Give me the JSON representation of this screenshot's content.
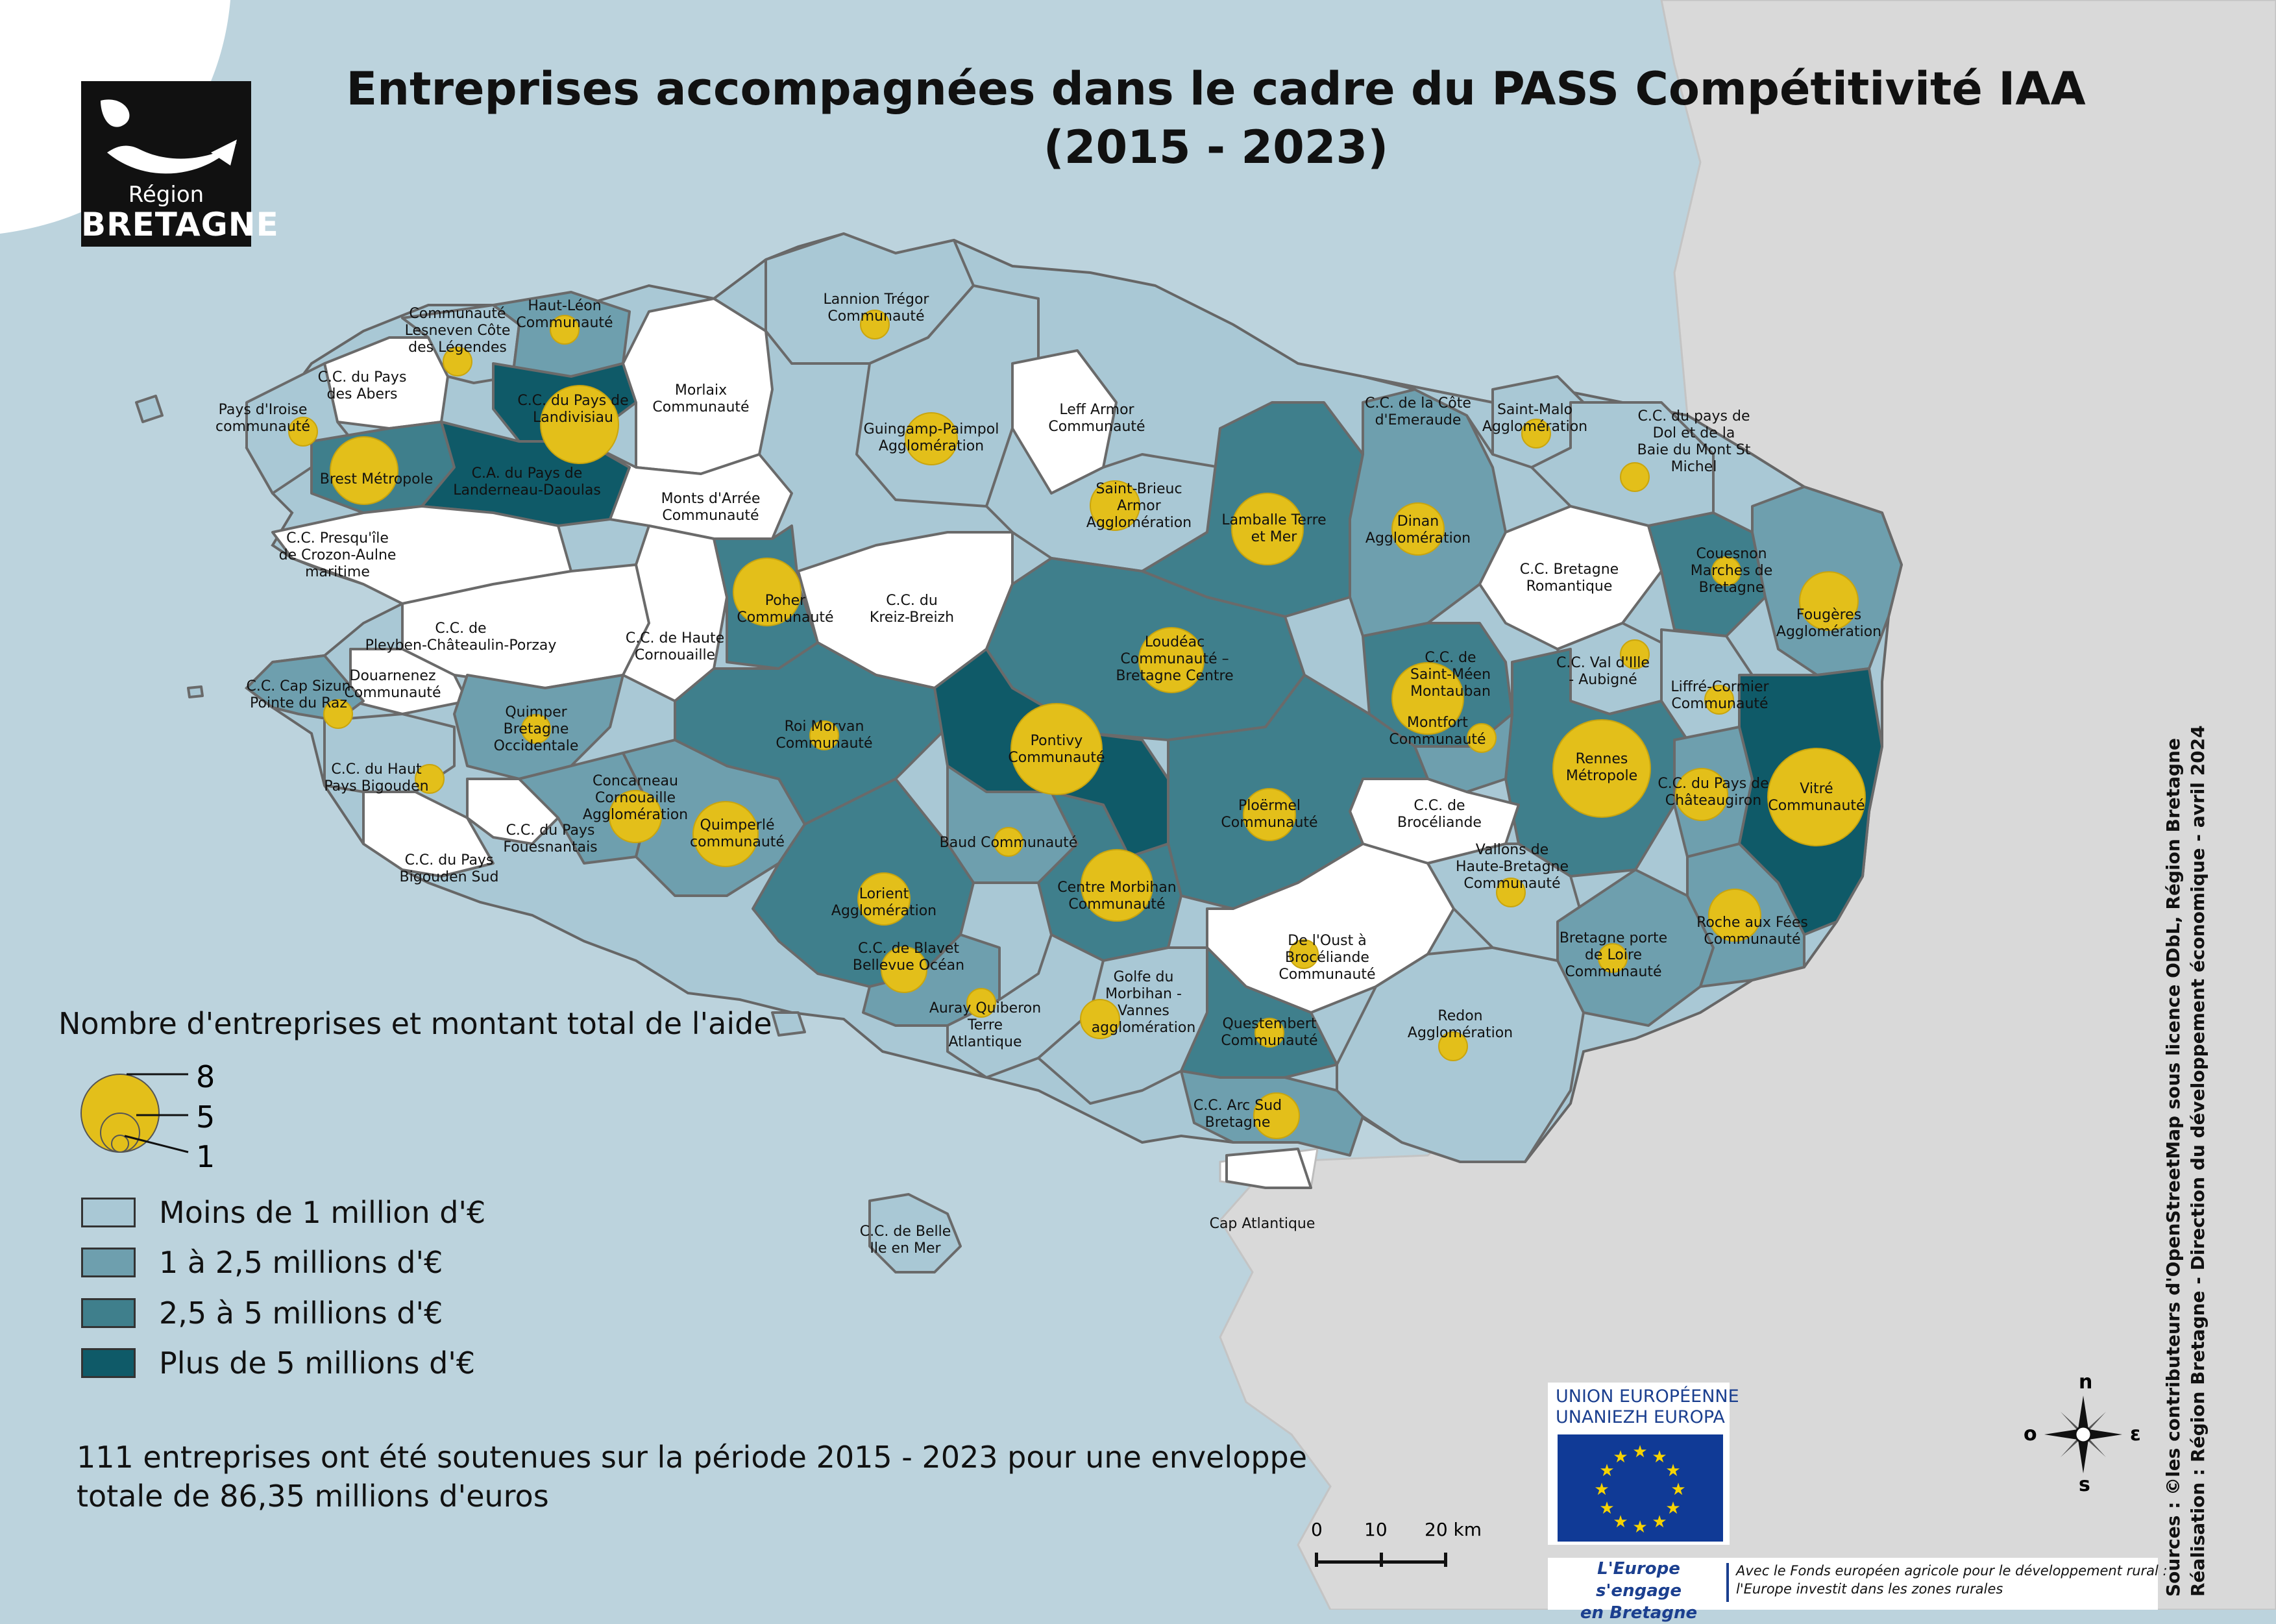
{
  "title_line1": "Entreprises accompagnées dans le cadre du PASS Compétitivité IAA",
  "title_line2": "(2015 - 2023)",
  "logo": {
    "region": "Région",
    "name": "BRETAGNE"
  },
  "legend": {
    "title": "Nombre d'entreprises et montant total de l'aide",
    "circle_values": [
      "8",
      "5",
      "1"
    ],
    "classes": [
      {
        "label": "Moins de 1 million d'€",
        "color": "#a9c8d5"
      },
      {
        "label": "1 à 2,5 millions d'€",
        "color": "#6e9fae"
      },
      {
        "label": "2,5 à 5 millions d'€",
        "color": "#3f7f8c"
      },
      {
        "label": "Plus de 5 millions d'€",
        "color": "#0f5a68"
      }
    ]
  },
  "summary": "111 entreprises ont été soutenues sur la période 2015 - 2023 pour une enveloppe totale de 86,35 millions d'euros",
  "sources_line1": "Sources : ©les contributeurs d'OpenStreetMap sous licence ODbL, Région Bretagne",
  "sources_line2": "Réalisation : Région Bretagne - Direction du développement économique - avril 2024",
  "eu": {
    "line1": "UNION EUROPÉENNE",
    "line2": "UNANIEZH EUROPA",
    "slogan1": "L'Europe s'engage",
    "slogan2": "en Bretagne",
    "fund1": "Avec le Fonds européen agricole pour le développement rural :",
    "fund2": "l'Europe investit dans les zones rurales"
  },
  "scale": {
    "t0": "0",
    "t1": "10",
    "t2": "20 km"
  },
  "compass": {
    "n": "n",
    "s": "s",
    "e": "ε",
    "o": "o"
  },
  "map_labels": {
    "lesneven": [
      "Communauté",
      "Lesneven Côte",
      "des Légendes"
    ],
    "hautleon": [
      "Haut-Léon",
      "Communauté"
    ],
    "lannion": [
      "Lannion Trégor",
      "Communauté"
    ],
    "abers": [
      "C.C. du Pays",
      "des Abers"
    ],
    "iroise": [
      "Pays d'Iroise",
      "communauté"
    ],
    "landivisiau": [
      "C.C. du Pays de",
      "Landivisiau"
    ],
    "morlaix": [
      "Morlaix",
      "Communauté"
    ],
    "guingamp": [
      "Guingamp-Paimpol",
      "Agglomération"
    ],
    "leffarmor": [
      "Leff Armor",
      "Communauté"
    ],
    "cotemeraude": [
      "C.C. de la Côte",
      "d'Emeraude"
    ],
    "stmalo": [
      "Saint-Malo",
      "Agglomération"
    ],
    "dol": [
      "C.C. du pays de",
      "Dol et de la",
      "Baie du Mont St",
      "Michel"
    ],
    "brest": [
      "Brest Métropole"
    ],
    "landerneau": [
      "C.A. du Pays de",
      "Landerneau-Daoulas"
    ],
    "montsarree": [
      "Monts d'Arrée",
      "Communauté"
    ],
    "stbrieuc": [
      "Saint-Brieuc",
      "Armor",
      "Agglomération"
    ],
    "lamballe": [
      "Lamballe Terre",
      "et Mer"
    ],
    "dinan": [
      "Dinan",
      "Agglomération"
    ],
    "crozon": [
      "C.C. Presqu'île",
      "de Crozon-Aulne",
      "maritime"
    ],
    "bretagneromantique": [
      "C.C. Bretagne",
      "Romantique"
    ],
    "coueshon": [
      "Couesnon",
      "Marches de",
      "Bretagne"
    ],
    "fougeres": [
      "Fougères",
      "Agglomération"
    ],
    "poher": [
      "Poher",
      "Communauté"
    ],
    "kreizbreizh": [
      "C.C. du",
      "Kreiz-Breizh"
    ],
    "pleyben": [
      "C.C. de",
      "Pleyben-Châteaulin-Porzay"
    ],
    "hautecornouaille": [
      "C.C. de Haute",
      "Cornouaille"
    ],
    "loudeac": [
      "Loudéac",
      "Communauté –",
      "Bretagne Centre"
    ],
    "stmeen": [
      "C.C. de",
      "Saint-Méen",
      "Montauban"
    ],
    "valdille": [
      "C.C. Val d'Ille",
      "- Aubigné"
    ],
    "liffre": [
      "Liffré-Cormier",
      "Communauté"
    ],
    "douarnenez": [
      "Douarnenez",
      "Communauté"
    ],
    "capsizun": [
      "C.C. Cap Sizun",
      "Pointe du Raz"
    ],
    "quimper": [
      "Quimper",
      "Bretagne",
      "Occidentale"
    ],
    "roimorvan": [
      "Roi Morvan",
      "Communauté"
    ],
    "pontivy": [
      "Pontivy",
      "Communauté"
    ],
    "montfort": [
      "Montfort",
      "Communauté"
    ],
    "rennes": [
      "Rennes",
      "Métropole"
    ],
    "chateaugiron": [
      "C.C. du Pays de",
      "Châteaugiron"
    ],
    "vitre": [
      "Vitré",
      "Communauté"
    ],
    "hautbigouden": [
      "C.C. du Haut",
      "Pays Bigouden"
    ],
    "concarneau": [
      "Concarneau",
      "Cornouaille",
      "Agglomération"
    ],
    "quimperle": [
      "Quimperlé",
      "communauté"
    ],
    "ploermel": [
      "Ploërmel",
      "Communauté"
    ],
    "broceliande": [
      "C.C. de",
      "Brocéliande"
    ],
    "fouesnant": [
      "C.C. du Pays",
      "Fouesnantais"
    ],
    "bigoudensud": [
      "C.C. du Pays",
      "Bigouden Sud"
    ],
    "baud": [
      "Baud Communauté"
    ],
    "vallons": [
      "Vallons de",
      "Haute-Bretagne",
      "Communauté"
    ],
    "lorient": [
      "Lorient",
      "Agglomération"
    ],
    "centremorbihan": [
      "Centre Morbihan",
      "Communauté"
    ],
    "oust": [
      "De l'Oust à",
      "Brocéliande",
      "Communauté"
    ],
    "rocheauxfees": [
      "Roche aux Fées",
      "Communauté"
    ],
    "blavet": [
      "C.C. de Blavet",
      "Bellevue Océan"
    ],
    "portedeloire": [
      "Bretagne porte",
      "de Loire",
      "Communauté"
    ],
    "auray": [
      "Auray Quiberon",
      "Terre",
      "Atlantique"
    ],
    "golfe": [
      "Golfe du",
      "Morbihan -",
      "Vannes",
      "agglomération"
    ],
    "redon": [
      "Redon",
      "Agglomération"
    ],
    "questembert": [
      "Questembert",
      "Communauté"
    ],
    "arcsud": [
      "C.C. Arc Sud",
      "Bretagne"
    ],
    "belleile": [
      "C.C. de Belle",
      "Ile en Mer"
    ],
    "capatlantique": [
      "Cap Atlantique"
    ]
  }
}
